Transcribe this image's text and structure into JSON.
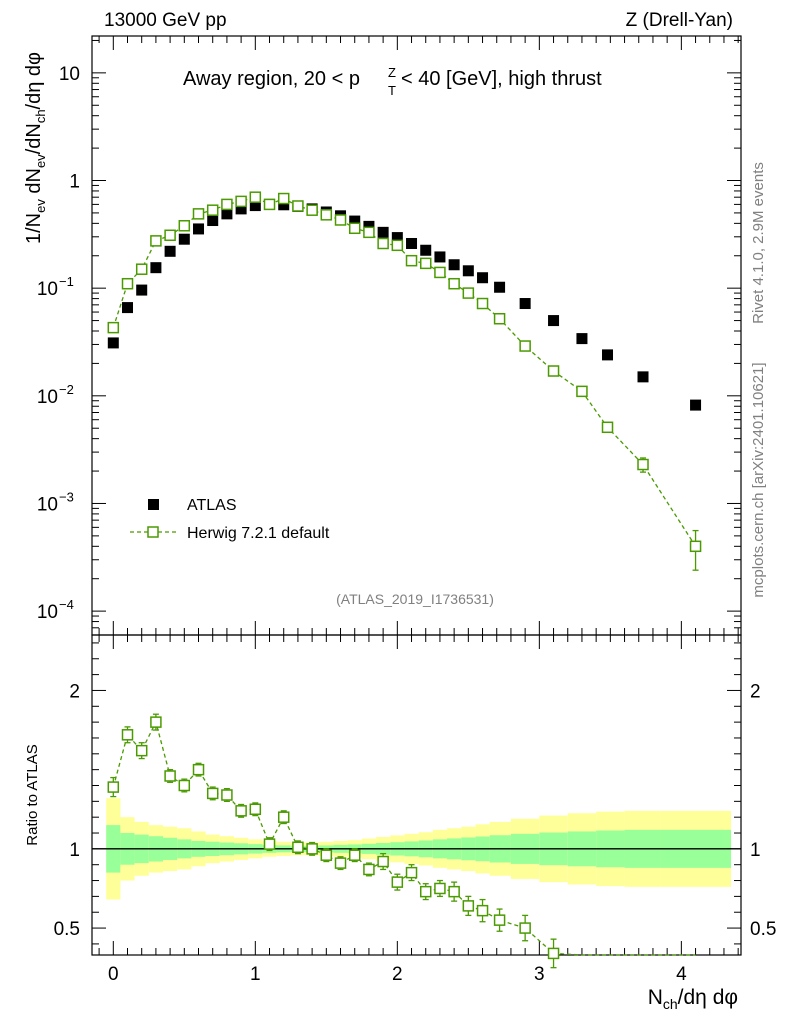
{
  "header": {
    "left": "13000 GeV pp",
    "right": "Z (Drell-Yan)"
  },
  "side_labels": {
    "rivet": "Rivet 4.1.0,  2.9M events",
    "mcplots": "mcplots.cern.ch [arXiv:2401.10621]"
  },
  "chart_data": {
    "type": "scatter",
    "title": "Away region, 20 < p_T^Z < 40 [GeV], high thrust",
    "analysis_id": "(ATLAS_2019_I1736531)",
    "xlabel": "N_ch/dη dφ",
    "ylabel_main": "1/N_ev dN_ev/dN_ch/dη dφ",
    "ylabel_ratio": "Ratio to ATLAS",
    "xlim": [
      -0.15,
      4.42
    ],
    "ylim_main": [
      6e-05,
      22
    ],
    "yscale_main": "log",
    "ylim_ratio": [
      0.33,
      2.35
    ],
    "x_ticks": [
      "0",
      "1",
      "2",
      "3",
      "4"
    ],
    "y_ticks_main": [
      {
        "value": 10,
        "mant": "10",
        "exp": ""
      },
      {
        "value": 1,
        "mant": "1",
        "exp": ""
      },
      {
        "value": 0.1,
        "mant": "10",
        "exp": "−1"
      },
      {
        "value": 0.01,
        "mant": "10",
        "exp": "−2"
      },
      {
        "value": 0.001,
        "mant": "10",
        "exp": "−3"
      },
      {
        "value": 0.0001,
        "mant": "10",
        "exp": "−4"
      }
    ],
    "y_ticks_ratio": [
      {
        "value": 2,
        "label": "2"
      },
      {
        "value": 1,
        "label": "1"
      },
      {
        "value": 0.5,
        "label": "0.5"
      }
    ],
    "legend": {
      "position": "bottom-left",
      "entries": [
        "ATLAS",
        "Herwig 7.2.1 default"
      ]
    },
    "series": [
      {
        "name": "ATLAS",
        "marker": "filled-square",
        "color": "#000000",
        "x": [
          0.0,
          0.1,
          0.2,
          0.3,
          0.4,
          0.5,
          0.6,
          0.7,
          0.8,
          0.9,
          1.0,
          1.1,
          1.2,
          1.3,
          1.4,
          1.5,
          1.6,
          1.7,
          1.8,
          1.9,
          2.0,
          2.1,
          2.2,
          2.3,
          2.4,
          2.5,
          2.6,
          2.72,
          2.9,
          3.1,
          3.3,
          3.48,
          3.73,
          4.1
        ],
        "values": [
          0.031,
          0.066,
          0.096,
          0.155,
          0.22,
          0.285,
          0.355,
          0.425,
          0.49,
          0.545,
          0.585,
          0.6,
          0.595,
          0.575,
          0.545,
          0.51,
          0.47,
          0.42,
          0.375,
          0.33,
          0.295,
          0.26,
          0.225,
          0.195,
          0.165,
          0.145,
          0.125,
          0.102,
          0.072,
          0.05,
          0.034,
          0.024,
          0.015,
          0.0082
        ]
      },
      {
        "name": "Herwig 7.2.1 default",
        "marker": "open-square-dashed",
        "color": "#4a9a00",
        "x": [
          0.0,
          0.1,
          0.2,
          0.3,
          0.4,
          0.5,
          0.6,
          0.7,
          0.8,
          0.9,
          1.0,
          1.1,
          1.2,
          1.3,
          1.4,
          1.5,
          1.6,
          1.7,
          1.8,
          1.9,
          2.0,
          2.1,
          2.2,
          2.3,
          2.4,
          2.5,
          2.6,
          2.72,
          2.9,
          3.1,
          3.3,
          3.48,
          3.73,
          4.1
        ],
        "values": [
          0.043,
          0.11,
          0.15,
          0.275,
          0.31,
          0.38,
          0.49,
          0.53,
          0.6,
          0.64,
          0.7,
          0.6,
          0.68,
          0.58,
          0.53,
          0.48,
          0.43,
          0.36,
          0.33,
          0.26,
          0.25,
          0.18,
          0.17,
          0.14,
          0.11,
          0.09,
          0.072,
          0.052,
          0.029,
          0.017,
          0.011,
          0.0051,
          0.0023,
          0.0004
        ],
        "errors_rel": [
          0.04,
          0.03,
          0.03,
          0.03,
          0.02,
          0.02,
          0.02,
          0.02,
          0.02,
          0.02,
          0.02,
          0.02,
          0.02,
          0.02,
          0.02,
          0.02,
          0.02,
          0.02,
          0.02,
          0.03,
          0.03,
          0.03,
          0.03,
          0.03,
          0.04,
          0.04,
          0.05,
          0.05,
          0.06,
          0.07,
          0.09,
          0.12,
          0.15,
          0.4
        ]
      }
    ],
    "ratio": {
      "herwig": [
        1.39,
        1.72,
        1.62,
        1.8,
        1.46,
        1.4,
        1.5,
        1.35,
        1.34,
        1.24,
        1.25,
        1.03,
        1.2,
        1.01,
        1.0,
        0.96,
        0.91,
        0.96,
        0.87,
        0.92,
        0.79,
        0.85,
        0.73,
        0.75,
        0.73,
        0.64,
        0.61,
        0.55,
        0.5
      ],
      "band_x_edges": [
        -0.05,
        0.05,
        0.15,
        0.25,
        0.35,
        0.45,
        0.55,
        0.65,
        0.75,
        0.85,
        0.95,
        1.05,
        1.15,
        1.25,
        1.35,
        1.45,
        1.55,
        1.65,
        1.75,
        1.85,
        1.95,
        2.05,
        2.15,
        2.25,
        2.35,
        2.45,
        2.55,
        2.65,
        2.8,
        3.0,
        3.2,
        3.4,
        3.6,
        3.85,
        4.35
      ],
      "band_stat": [
        0.15,
        0.1,
        0.09,
        0.08,
        0.07,
        0.06,
        0.05,
        0.045,
        0.04,
        0.035,
        0.03,
        0.025,
        0.022,
        0.02,
        0.02,
        0.022,
        0.025,
        0.028,
        0.032,
        0.037,
        0.042,
        0.047,
        0.053,
        0.06,
        0.066,
        0.072,
        0.078,
        0.086,
        0.095,
        0.103,
        0.11,
        0.116,
        0.12,
        0.12
      ],
      "band_tot": [
        0.32,
        0.2,
        0.17,
        0.15,
        0.14,
        0.13,
        0.11,
        0.09,
        0.08,
        0.07,
        0.06,
        0.05,
        0.045,
        0.04,
        0.04,
        0.045,
        0.05,
        0.055,
        0.065,
        0.075,
        0.085,
        0.095,
        0.105,
        0.12,
        0.13,
        0.14,
        0.155,
        0.17,
        0.19,
        0.21,
        0.225,
        0.235,
        0.24,
        0.24
      ]
    }
  }
}
